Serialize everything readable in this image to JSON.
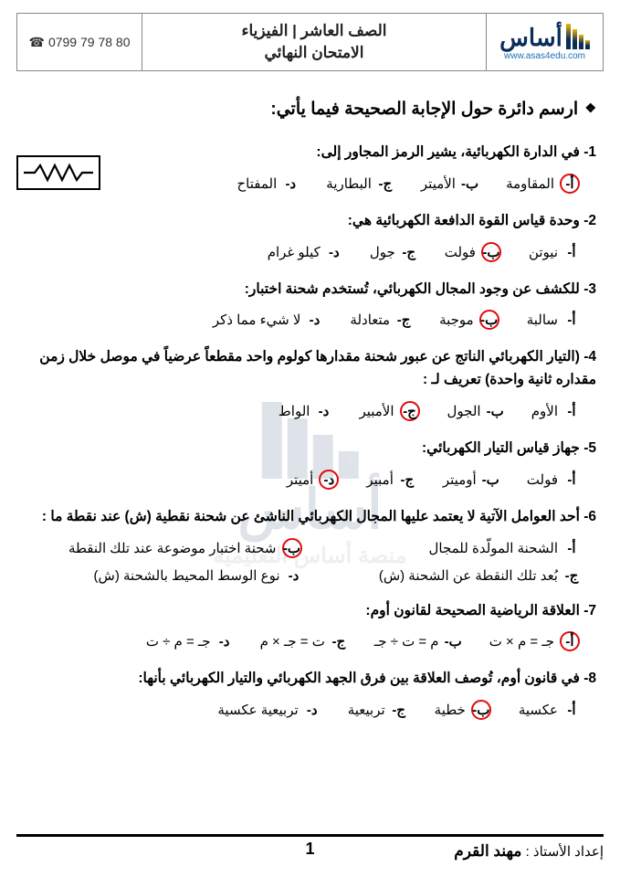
{
  "header": {
    "logo_text": "أساس",
    "logo_url": "www.asas4edu.com",
    "title_line1": "الصف العاشر | الفيزياء",
    "title_line2": "الامتحان النهائي",
    "phone": "0799 79 78 80"
  },
  "instruction": "ارسم دائرة حول الإجابة الصحيحة فيما يأتي:",
  "questions": [
    {
      "num": "1",
      "text": "في الدارة الكهربائية، يشير الرمز المجاور إلى:",
      "opts": [
        {
          "l": "أ-",
          "t": "المقاومة",
          "c": true
        },
        {
          "l": "ب-",
          "t": "الأميتر",
          "c": false
        },
        {
          "l": "ج-",
          "t": "البطارية",
          "c": false
        },
        {
          "l": "د-",
          "t": "المفتاح",
          "c": false
        }
      ]
    },
    {
      "num": "2",
      "text": "وحدة قياس القوة الدافعة الكهربائية هي:",
      "opts": [
        {
          "l": "أ-",
          "t": "نيوتن",
          "c": false
        },
        {
          "l": "ب-",
          "t": "فولت",
          "c": true
        },
        {
          "l": "ج-",
          "t": "جول",
          "c": false
        },
        {
          "l": "د-",
          "t": "كيلو غرام",
          "c": false
        }
      ]
    },
    {
      "num": "3",
      "text": "للكشف عن وجود المجال الكهربائي، تُستخدم شحنة اختبار:",
      "opts": [
        {
          "l": "أ-",
          "t": "سالبة",
          "c": false
        },
        {
          "l": "ب-",
          "t": "موجبة",
          "c": true
        },
        {
          "l": "ج-",
          "t": "متعادلة",
          "c": false
        },
        {
          "l": "د-",
          "t": "لا شيء مما ذكر",
          "c": false
        }
      ]
    },
    {
      "num": "4",
      "text": "(التيار الكهربائي الناتج عن عبور شحنة مقدارها كولوم واحد مقطعاً عرضياً في موصل خلال زمن مقداره ثانية واحدة) تعريف لـ :",
      "opts": [
        {
          "l": "أ-",
          "t": "الأوم",
          "c": false
        },
        {
          "l": "ب-",
          "t": "الجول",
          "c": false
        },
        {
          "l": "ج-",
          "t": "الأمبير",
          "c": true
        },
        {
          "l": "د-",
          "t": "الواط",
          "c": false
        }
      ]
    },
    {
      "num": "5",
      "text": "جهاز قياس التيار الكهربائي:",
      "opts": [
        {
          "l": "أ-",
          "t": "فولت",
          "c": false
        },
        {
          "l": "ب-",
          "t": "أوميتر",
          "c": false
        },
        {
          "l": "ج-",
          "t": "أمبير",
          "c": false
        },
        {
          "l": "د-",
          "t": "أميتر",
          "c": true
        }
      ]
    },
    {
      "num": "6",
      "text": "أحد العوامل الآتية لا يعتمد عليها المجال الكهربائي الناشئ عن شحنة نقطية (ش) عند نقطة ما :",
      "opts": [
        {
          "l": "أ-",
          "t": "الشحنة المولّدة للمجال",
          "c": false
        },
        {
          "l": "ب-",
          "t": "شحنة اختبار موضوعة عند تلك النقطة",
          "c": true
        },
        {
          "l": "ج-",
          "t": "بُعد تلك النقطة عن الشحنة (ش)",
          "c": false
        },
        {
          "l": "د-",
          "t": "نوع الوسط المحيط بالشحنة (ش)",
          "c": false
        }
      ]
    },
    {
      "num": "7",
      "text": "العلاقة الرياضية الصحيحة لقانون أوم:",
      "opts": [
        {
          "l": "أ-",
          "t": "جـ = م × ت",
          "c": true
        },
        {
          "l": "ب-",
          "t": "م = ت ÷ جـ",
          "c": false
        },
        {
          "l": "ج-",
          "t": "ت = جـ × م",
          "c": false
        },
        {
          "l": "د-",
          "t": "جـ = م ÷ ت",
          "c": false
        }
      ]
    },
    {
      "num": "8",
      "text": "في قانون أوم، تُوصف العلاقة بين فرق الجهد الكهربائي والتيار الكهربائي بأنها:",
      "opts": [
        {
          "l": "أ-",
          "t": "عكسية",
          "c": false
        },
        {
          "l": "ب-",
          "t": "خطية",
          "c": true
        },
        {
          "l": "ج-",
          "t": "تربيعية",
          "c": false
        },
        {
          "l": "د-",
          "t": "تربيعية عكسية",
          "c": false
        }
      ]
    }
  ],
  "watermark": {
    "word": "أساس",
    "sub": "منصة أساس التعليمية"
  },
  "footer": {
    "page": "1",
    "teacher_label": "إعداد الأستاذ : ",
    "teacher_name": "مهند القرم"
  }
}
